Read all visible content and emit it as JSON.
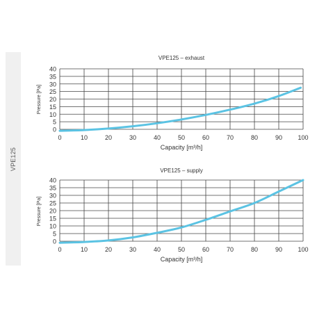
{
  "side_label": "VPE125",
  "colors": {
    "curve": "#5bc3e3",
    "grid": "#444444",
    "text": "#333333",
    "side_panel": "#f0f0f0"
  },
  "chart_data": [
    {
      "type": "line",
      "title": "VPE125 – exhaust",
      "xlabel": "Capacity [m³/h]",
      "ylabel": "Pressure [Pa]",
      "xlim": [
        0,
        100
      ],
      "ylim": [
        0,
        40
      ],
      "x_ticks": [
        0,
        10,
        20,
        30,
        40,
        50,
        60,
        70,
        80,
        90,
        100
      ],
      "y_ticks": [
        0,
        5,
        10,
        15,
        20,
        25,
        30,
        35,
        40
      ],
      "grid": true,
      "series": [
        {
          "x": [
            0,
            10,
            20,
            30,
            40,
            50,
            60,
            70,
            80,
            90,
            99
          ],
          "y": [
            -1,
            -0.5,
            0.5,
            2,
            4,
            6.5,
            9.5,
            13,
            17,
            22,
            27.5
          ]
        }
      ]
    },
    {
      "type": "line",
      "title": "VPE125 – supply",
      "xlabel": "Capacity [m³/h]",
      "ylabel": "Pressure [Pa]",
      "xlim": [
        0,
        100
      ],
      "ylim": [
        0,
        40
      ],
      "x_ticks": [
        0,
        10,
        20,
        30,
        40,
        50,
        60,
        70,
        80,
        90,
        100
      ],
      "y_ticks": [
        0,
        5,
        10,
        15,
        20,
        25,
        30,
        35,
        40
      ],
      "grid": true,
      "series": [
        {
          "x": [
            0,
            10,
            20,
            30,
            40,
            50,
            60,
            70,
            80,
            90,
            100
          ],
          "y": [
            -1,
            -0.5,
            0.5,
            2.5,
            5.5,
            9,
            14,
            19.5,
            25,
            32.5,
            40
          ]
        }
      ]
    }
  ]
}
